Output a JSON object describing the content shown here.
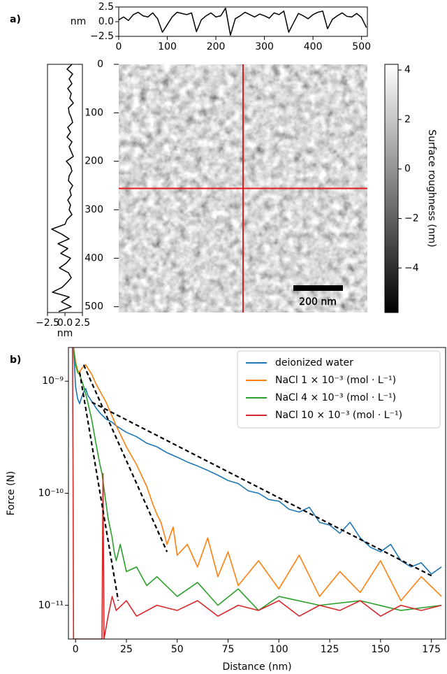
{
  "chart_data": [
    {
      "type": "line",
      "panel_label": "a)",
      "ylabel": "nm",
      "color": "#000000",
      "xlim": [
        0,
        512
      ],
      "xticks": [
        0,
        100,
        200,
        300,
        400,
        500
      ],
      "ylim": [
        -2.5,
        2.5
      ],
      "yticks": [
        2.5,
        {
          "value": 0,
          "label": "0.0"
        },
        {
          "value": -2.5,
          "label": "−2.5"
        }
      ],
      "x": [
        0,
        10,
        20,
        30,
        40,
        50,
        60,
        70,
        80,
        90,
        100,
        110,
        120,
        130,
        140,
        150,
        160,
        170,
        180,
        190,
        200,
        210,
        220,
        230,
        240,
        250,
        260,
        270,
        280,
        290,
        300,
        310,
        320,
        330,
        340,
        350,
        360,
        370,
        380,
        390,
        400,
        410,
        420,
        430,
        440,
        450,
        460,
        470,
        480,
        490,
        500,
        510
      ],
      "values": [
        0.3,
        0.8,
        0.2,
        1.2,
        1.6,
        1.0,
        0.8,
        1.5,
        0.5,
        -1.8,
        -0.5,
        0.8,
        1.6,
        1.4,
        1.2,
        1.5,
        -1.7,
        0.3,
        1.0,
        1.5,
        0.8,
        1.0,
        2.3,
        -2.3,
        0.5,
        1.0,
        1.6,
        1.2,
        0.8,
        1.3,
        1.0,
        0.6,
        1.5,
        1.2,
        1.8,
        -1.8,
        -0.2,
        1.4,
        1.0,
        0.5,
        1.2,
        1.6,
        1.8,
        -1.2,
        0.4,
        1.0,
        1.5,
        0.9,
        0.8,
        1.4,
        0.7,
        -1.0
      ]
    },
    {
      "type": "line",
      "orientation": "vertical",
      "xlabel": "nm",
      "color": "#000000",
      "xlim": [
        -2.5,
        2.5
      ],
      "xticks": [
        {
          "value": -2.5,
          "label": "−2.5"
        },
        {
          "value": 0,
          "label": "0.0"
        },
        2.5
      ],
      "ylim": [
        0,
        512
      ],
      "x": [
        0,
        10,
        20,
        30,
        40,
        50,
        60,
        70,
        80,
        90,
        100,
        110,
        120,
        130,
        140,
        150,
        160,
        170,
        180,
        190,
        200,
        210,
        220,
        230,
        240,
        250,
        260,
        270,
        280,
        290,
        300,
        310,
        320,
        330,
        340,
        350,
        360,
        370,
        380,
        390,
        400,
        410,
        420,
        430,
        440,
        450,
        460,
        470,
        480,
        490,
        500,
        510
      ],
      "values": [
        1.0,
        0.3,
        1.1,
        0.6,
        1.0,
        0.4,
        0.9,
        0.7,
        1.2,
        0.5,
        0.6,
        0.9,
        1.1,
        0.4,
        0.8,
        0.3,
        1.0,
        0.6,
        0.9,
        1.2,
        0.2,
        0.8,
        1.0,
        0.6,
        0.5,
        1.1,
        0.7,
        0.9,
        0.4,
        0.8,
        0.6,
        1.0,
        0.3,
        0.0,
        -1.9,
        -0.5,
        0.6,
        -1.0,
        0.4,
        -0.6,
        0.8,
        0.2,
        -0.8,
        0.5,
        0.9,
        0.3,
        -0.4,
        -1.8,
        0.6,
        -0.5,
        0.9,
        -0.9
      ]
    },
    {
      "type": "image",
      "xlim": [
        0,
        512
      ],
      "ylim": [
        0,
        512
      ],
      "yticks": [
        0,
        100,
        200,
        300,
        400,
        500
      ],
      "crosshair": [
        256,
        256
      ],
      "crosshair_color": "#e8191c",
      "scalebar": "200 nm",
      "clim": [
        -5.8,
        4.23
      ],
      "cticks": [
        4,
        2,
        0,
        {
          "value": -2,
          "label": "−2"
        },
        {
          "value": -4,
          "label": "−4"
        }
      ],
      "clabel": "Surface roughness (nm)"
    },
    {
      "type": "line",
      "panel_label": "b)",
      "xlabel": "Distance (nm)",
      "ylabel": "Force (N)",
      "log_y": true,
      "legend": "upper right",
      "xlim": [
        -3.5,
        182
      ],
      "xticks": [
        0,
        25,
        50,
        75,
        100,
        125,
        150,
        175
      ],
      "ylim": [
        5e-12,
        2e-09
      ],
      "yticks": [
        {
          "value": 1e-11,
          "label": "10⁻¹¹"
        },
        {
          "value": 1e-10,
          "label": "10⁻¹⁰"
        },
        {
          "value": 1e-09,
          "label": "10⁻⁹"
        }
      ],
      "series": [
        {
          "name": "deionized water",
          "color": "#1f77b4",
          "x": [
            -1,
            0,
            1,
            2,
            3,
            4,
            5,
            6,
            8,
            10,
            12,
            15,
            18,
            20,
            25,
            30,
            35,
            40,
            45,
            50,
            55,
            60,
            65,
            70,
            75,
            80,
            85,
            90,
            95,
            100,
            105,
            110,
            115,
            120,
            125,
            130,
            135,
            140,
            145,
            150,
            155,
            160,
            165,
            170,
            175,
            180
          ],
          "values": [
            2e-09,
            9e-10,
            7e-10,
            6.3e-10,
            7.2e-10,
            8e-10,
            8.6e-10,
            7.5e-10,
            6.6e-10,
            5.8e-10,
            5.2e-10,
            4.6e-10,
            4.3e-10,
            4e-10,
            3.5e-10,
            3.2e-10,
            2.8e-10,
            2.6e-10,
            2.3e-10,
            2.1e-10,
            1.9e-10,
            1.75e-10,
            1.6e-10,
            1.45e-10,
            1.3e-10,
            1.22e-10,
            1.05e-10,
            1e-10,
            8.8e-11,
            8.5e-11,
            7.2e-11,
            6.8e-11,
            7.5e-11,
            5.5e-11,
            5.2e-11,
            4.4e-11,
            5.5e-11,
            4e-11,
            3.3e-11,
            3e-11,
            3.5e-11,
            2.5e-11,
            2.2e-11,
            2.4e-11,
            1.9e-11,
            2.2e-11
          ]
        },
        {
          "name": "NaCl 1 × 10⁻³ (mol · L⁻¹)",
          "color": "#ff7f0e",
          "x": [
            -1,
            0,
            1,
            2,
            3,
            5,
            8,
            10,
            15,
            20,
            25,
            30,
            35,
            38,
            40,
            42,
            45,
            48,
            50,
            55,
            60,
            65,
            70,
            75,
            80,
            90,
            100,
            110,
            120,
            130,
            140,
            150,
            160,
            170,
            180
          ],
          "values": [
            2e-09,
            1.5e-09,
            1.25e-09,
            1.2e-09,
            1.3e-09,
            1.4e-09,
            1.15e-09,
            9.5e-10,
            6.5e-10,
            4e-10,
            2.6e-10,
            1.8e-10,
            1.15e-10,
            8e-11,
            6.5e-11,
            5.5e-11,
            3.5e-11,
            5e-11,
            2.8e-11,
            3.5e-11,
            2.2e-11,
            4e-11,
            1.8e-11,
            3e-11,
            1.5e-11,
            2.5e-11,
            1.4e-11,
            2.8e-11,
            1.2e-11,
            2e-11,
            1.3e-11,
            2.5e-11,
            1.1e-11,
            1.8e-11,
            1.2e-11
          ]
        },
        {
          "name": "NaCl 4 × 10⁻³ (mol · L⁻¹)",
          "color": "#2ca02c",
          "x": [
            -1,
            0,
            1,
            2,
            4,
            6,
            8,
            10,
            12,
            13,
            14,
            16,
            18,
            19,
            20,
            22,
            25,
            30,
            35,
            40,
            50,
            60,
            70,
            80,
            90,
            100,
            120,
            140,
            160,
            180
          ],
          "values": [
            2e-09,
            1.4e-09,
            1.2e-09,
            1.15e-09,
            9e-10,
            6.5e-10,
            4.5e-10,
            2.8e-10,
            1.8e-10,
            1.5e-10,
            1.1e-10,
            6e-11,
            4e-11,
            3e-11,
            2.5e-11,
            3.5e-11,
            2e-11,
            2.2e-11,
            1.5e-11,
            1.8e-11,
            1.2e-11,
            1.6e-11,
            1e-11,
            1.4e-11,
            9e-12,
            1.2e-11,
            1e-11,
            1.1e-11,
            9e-12,
            1e-11
          ]
        },
        {
          "name": "NaCl 10 × 10⁻³ (mol · L⁻¹)",
          "color": "#d62728",
          "x": [
            -1.5,
            -1.2,
            -1,
            13,
            13.5,
            14,
            16,
            18,
            20,
            25,
            30,
            40,
            50,
            60,
            70,
            80,
            90,
            100,
            110,
            120,
            130,
            140,
            150,
            160,
            170,
            180
          ],
          "values": [
            2e-09,
            1e-10,
            5e-12,
            5e-12,
            1.5e-10,
            5e-12,
            8e-12,
            1.2e-11,
            9e-12,
            1.1e-11,
            8e-12,
            1e-11,
            9e-12,
            1.1e-11,
            8e-12,
            1e-11,
            9e-12,
            1.1e-11,
            8e-12,
            1e-11,
            9e-12,
            1.1e-11,
            8e-12,
            1e-11,
            9e-12,
            1e-11
          ]
        }
      ],
      "fits": [
        {
          "color": "#000000",
          "x": [
            8,
            176
          ],
          "values": [
            6.5e-10,
            1.8e-11
          ]
        },
        {
          "color": "#000000",
          "x": [
            4,
            45
          ],
          "values": [
            1.4e-09,
            3e-11
          ]
        },
        {
          "color": "#000000",
          "x": [
            2,
            21
          ],
          "values": [
            1.2e-09,
            1.1e-11
          ]
        }
      ]
    }
  ]
}
